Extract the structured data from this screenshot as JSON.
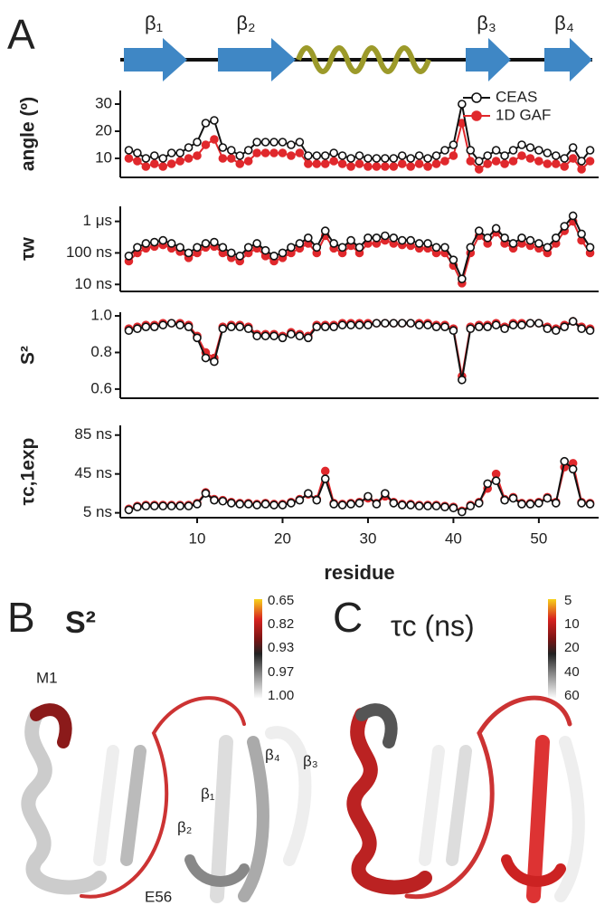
{
  "figure": {
    "panel_labels": [
      "A",
      "B",
      "C"
    ],
    "strands": [
      "β₁",
      "β₂",
      "β₃",
      "β₄"
    ],
    "B": {
      "title": "S²",
      "colorbar_ticks": [
        "0.65",
        "0.82",
        "0.93",
        "0.97",
        "1.00"
      ],
      "labels": [
        "M1",
        "E56",
        "β₄",
        "β₃",
        "β₁",
        "β₂"
      ]
    },
    "C": {
      "title": "τc (ns)",
      "colorbar_ticks": [
        "5",
        "10",
        "20",
        "40",
        "60"
      ]
    }
  },
  "chart_data": [
    {
      "type": "line",
      "ylabel": "angle (º)",
      "xlim": [
        1,
        57
      ],
      "ylim": [
        3,
        35
      ],
      "yticks": [
        10,
        20,
        30
      ],
      "legend": "upper right",
      "x": [
        2,
        3,
        4,
        5,
        6,
        7,
        8,
        9,
        10,
        11,
        12,
        13,
        14,
        15,
        16,
        17,
        18,
        19,
        20,
        21,
        22,
        23,
        24,
        25,
        26,
        27,
        28,
        29,
        30,
        31,
        32,
        33,
        34,
        35,
        36,
        37,
        38,
        39,
        40,
        41,
        42,
        43,
        44,
        45,
        46,
        47,
        48,
        49,
        50,
        51,
        52,
        53,
        54,
        55,
        56
      ],
      "series": [
        {
          "name": "CEAS",
          "color": "#111111",
          "values": [
            13,
            12,
            10,
            11,
            10,
            12,
            12,
            14,
            16,
            23,
            24,
            14,
            13,
            11,
            13,
            16,
            16,
            16,
            16,
            15,
            16,
            11,
            11,
            11,
            12,
            11,
            10,
            11,
            10,
            10,
            10,
            10,
            11,
            10,
            11,
            10,
            11,
            13,
            15,
            30,
            13,
            9,
            11,
            13,
            11,
            13,
            15,
            14,
            13,
            12,
            11,
            10,
            14,
            9,
            13
          ]
        },
        {
          "name": "1D GAF",
          "color": "#e0282c",
          "values": [
            10,
            9,
            7,
            8,
            7,
            8,
            9,
            10,
            11,
            15,
            17,
            10,
            10,
            8,
            9,
            12,
            12,
            12,
            12,
            11,
            12,
            8,
            8,
            8,
            9,
            8,
            7,
            8,
            7,
            7,
            7,
            7,
            8,
            7,
            8,
            7,
            8,
            9,
            11,
            23,
            9,
            6,
            8,
            9,
            8,
            9,
            11,
            10,
            9,
            8,
            8,
            7,
            10,
            6,
            9
          ]
        }
      ]
    },
    {
      "type": "line",
      "ylabel": "τw",
      "log_y": true,
      "xlim": [
        1,
        57
      ],
      "ylim": [
        6,
        3000
      ],
      "yticks": [
        {
          "value": 10,
          "label": "10 ns"
        },
        {
          "value": 100,
          "label": "100 ns"
        },
        {
          "value": 1000,
          "label": "1 μs"
        }
      ],
      "x": [
        2,
        3,
        4,
        5,
        6,
        7,
        8,
        9,
        10,
        11,
        12,
        13,
        14,
        15,
        16,
        17,
        18,
        19,
        20,
        21,
        22,
        23,
        24,
        25,
        26,
        27,
        28,
        29,
        30,
        31,
        32,
        33,
        34,
        35,
        36,
        37,
        38,
        39,
        40,
        41,
        42,
        43,
        44,
        45,
        46,
        47,
        48,
        49,
        50,
        51,
        52,
        53,
        54,
        55,
        56
      ],
      "series": [
        {
          "name": "CEAS",
          "color": "#111111",
          "values": [
            80,
            150,
            200,
            220,
            250,
            200,
            150,
            100,
            150,
            200,
            220,
            150,
            100,
            80,
            150,
            200,
            120,
            80,
            100,
            150,
            200,
            300,
            150,
            500,
            200,
            150,
            250,
            150,
            300,
            300,
            350,
            300,
            250,
            250,
            200,
            200,
            150,
            150,
            60,
            15,
            150,
            500,
            300,
            600,
            300,
            200,
            300,
            250,
            200,
            150,
            300,
            700,
            1500,
            400,
            150
          ]
        },
        {
          "name": "1D GAF",
          "color": "#e0282c",
          "values": [
            55,
            100,
            140,
            160,
            180,
            140,
            110,
            70,
            100,
            150,
            160,
            100,
            70,
            55,
            100,
            140,
            80,
            55,
            70,
            100,
            140,
            200,
            100,
            350,
            140,
            100,
            170,
            100,
            200,
            200,
            250,
            200,
            180,
            170,
            140,
            140,
            100,
            100,
            40,
            11,
            100,
            350,
            200,
            450,
            200,
            140,
            200,
            170,
            140,
            100,
            200,
            500,
            1000,
            250,
            100
          ]
        }
      ]
    },
    {
      "type": "line",
      "ylabel": "S²",
      "xlim": [
        1,
        57
      ],
      "ylim": [
        0.55,
        1.02
      ],
      "yticks": [
        0.6,
        0.8,
        {
          "value": 1,
          "label": "1.0"
        }
      ],
      "x": [
        2,
        3,
        4,
        5,
        6,
        7,
        8,
        9,
        10,
        11,
        12,
        13,
        14,
        15,
        16,
        17,
        18,
        19,
        20,
        21,
        22,
        23,
        24,
        25,
        26,
        27,
        28,
        29,
        30,
        31,
        32,
        33,
        34,
        35,
        36,
        37,
        38,
        39,
        40,
        41,
        42,
        43,
        44,
        45,
        46,
        47,
        48,
        49,
        50,
        51,
        52,
        53,
        54,
        55,
        56
      ],
      "series": [
        {
          "name": "CEAS",
          "color": "#111111",
          "values": [
            0.92,
            0.93,
            0.94,
            0.94,
            0.95,
            0.96,
            0.95,
            0.94,
            0.88,
            0.77,
            0.75,
            0.93,
            0.94,
            0.94,
            0.93,
            0.89,
            0.89,
            0.89,
            0.88,
            0.9,
            0.89,
            0.88,
            0.94,
            0.94,
            0.94,
            0.95,
            0.95,
            0.95,
            0.95,
            0.96,
            0.96,
            0.96,
            0.96,
            0.96,
            0.95,
            0.95,
            0.94,
            0.94,
            0.92,
            0.65,
            0.93,
            0.94,
            0.94,
            0.95,
            0.93,
            0.95,
            0.95,
            0.96,
            0.96,
            0.93,
            0.92,
            0.94,
            0.97,
            0.93,
            0.92
          ]
        },
        {
          "name": "1D GAF",
          "color": "#e0282c",
          "values": [
            0.93,
            0.94,
            0.95,
            0.95,
            0.96,
            0.96,
            0.96,
            0.95,
            0.89,
            0.8,
            0.77,
            0.94,
            0.95,
            0.95,
            0.94,
            0.9,
            0.9,
            0.9,
            0.89,
            0.91,
            0.9,
            0.89,
            0.95,
            0.95,
            0.95,
            0.96,
            0.96,
            0.96,
            0.96,
            0.96,
            0.96,
            0.96,
            0.96,
            0.96,
            0.96,
            0.96,
            0.95,
            0.95,
            0.93,
            0.67,
            0.94,
            0.95,
            0.95,
            0.96,
            0.94,
            0.96,
            0.96,
            0.96,
            0.96,
            0.94,
            0.93,
            0.95,
            0.97,
            0.94,
            0.93
          ]
        }
      ]
    },
    {
      "type": "line",
      "ylabel": "τc,1exp",
      "xlabel": "residue",
      "xlim": [
        1,
        57
      ],
      "ylim": [
        0,
        95
      ],
      "xticks": [
        10,
        20,
        30,
        40,
        50
      ],
      "yticks": [
        {
          "value": 5,
          "label": "5 ns"
        },
        {
          "value": 45,
          "label": "45 ns"
        },
        {
          "value": 85,
          "label": "85 ns"
        }
      ],
      "x": [
        2,
        3,
        4,
        5,
        6,
        7,
        8,
        9,
        10,
        11,
        12,
        13,
        14,
        15,
        16,
        17,
        18,
        19,
        20,
        21,
        22,
        23,
        24,
        25,
        26,
        27,
        28,
        29,
        30,
        31,
        32,
        33,
        34,
        35,
        36,
        37,
        38,
        39,
        40,
        41,
        42,
        43,
        44,
        45,
        46,
        47,
        48,
        49,
        50,
        51,
        52,
        53,
        54,
        55,
        56
      ],
      "series": [
        {
          "name": "CEAS",
          "color": "#111111",
          "values": [
            8,
            11,
            12,
            12,
            12,
            12,
            12,
            12,
            14,
            25,
            18,
            17,
            15,
            14,
            14,
            13,
            14,
            13,
            13,
            15,
            18,
            25,
            18,
            40,
            14,
            13,
            14,
            15,
            22,
            14,
            25,
            15,
            13,
            13,
            12,
            12,
            12,
            11,
            10,
            6,
            12,
            15,
            35,
            38,
            18,
            20,
            14,
            14,
            15,
            20,
            15,
            58,
            50,
            15,
            14
          ]
        },
        {
          "name": "1D GAF",
          "color": "#e0282c",
          "values": [
            9,
            12,
            13,
            13,
            13,
            13,
            13,
            13,
            15,
            26,
            19,
            18,
            16,
            15,
            15,
            14,
            15,
            14,
            14,
            16,
            19,
            24,
            19,
            48,
            15,
            14,
            15,
            16,
            20,
            15,
            22,
            16,
            14,
            14,
            13,
            13,
            13,
            12,
            11,
            7,
            13,
            16,
            30,
            45,
            19,
            21,
            15,
            15,
            16,
            21,
            16,
            52,
            56,
            16,
            15
          ]
        }
      ]
    }
  ]
}
